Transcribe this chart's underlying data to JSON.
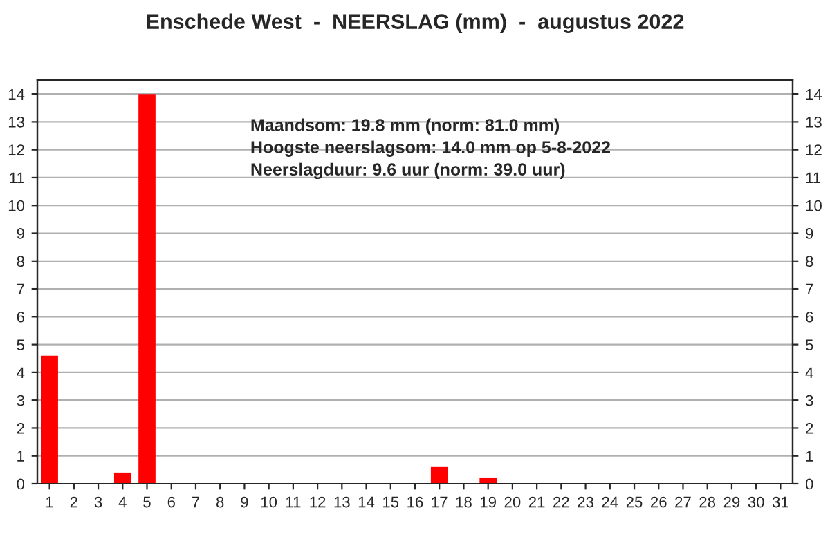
{
  "chart_data": {
    "type": "bar",
    "title": "Enschede West  -  NEERSLAG (mm)  -  augustus 2022",
    "categories": [
      "1",
      "2",
      "3",
      "4",
      "5",
      "6",
      "7",
      "8",
      "9",
      "10",
      "11",
      "12",
      "13",
      "14",
      "15",
      "16",
      "17",
      "18",
      "19",
      "20",
      "21",
      "22",
      "23",
      "24",
      "25",
      "26",
      "27",
      "28",
      "29",
      "30",
      "31"
    ],
    "series": [
      {
        "color": "#ff0000",
        "values": [
          4.6,
          0,
          0,
          0.4,
          14.0,
          0,
          0,
          0,
          0,
          0,
          0,
          0,
          0,
          0,
          0,
          0,
          0.6,
          0,
          0.2,
          0,
          0,
          0,
          0,
          0,
          0,
          0,
          0,
          0,
          0,
          0,
          0
        ]
      }
    ],
    "ylim": [
      0,
      14.5
    ],
    "yticks": [
      0,
      1,
      2,
      3,
      4,
      5,
      6,
      7,
      8,
      9,
      10,
      11,
      12,
      13,
      14
    ],
    "y2lim": [
      0,
      14.5
    ],
    "y2ticks": [
      0,
      1,
      2,
      3,
      4,
      5,
      6,
      7,
      8,
      9,
      10,
      11,
      12,
      13,
      14
    ],
    "grid": "y",
    "annotations": [
      "Maandsom: 19.8 mm (norm: 81.0 mm)",
      "Hoogste neerslagsom: 14.0 mm op 5-8-2022",
      "Neerslagduur: 9.6 uur (norm: 39.0 uur)"
    ]
  }
}
